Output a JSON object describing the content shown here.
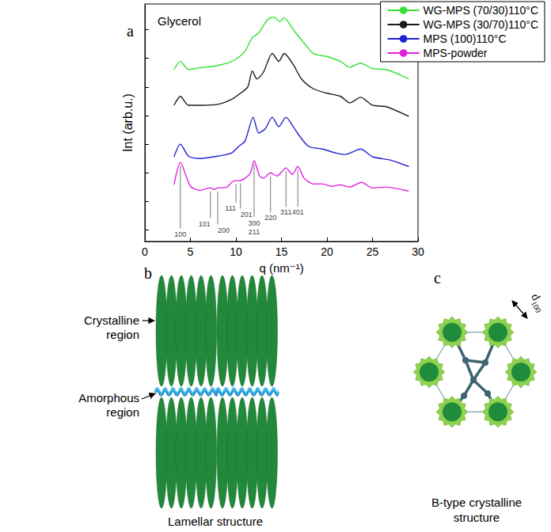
{
  "chart_data": {
    "type": "line",
    "title": "Glycerol",
    "x_label": "q (nm⁻¹)",
    "y_label": "Int (arb.u.)",
    "xlim": [
      0,
      30
    ],
    "xticks": [
      0,
      5,
      10,
      15,
      20,
      25,
      30
    ],
    "ylim": [
      -0.4,
      7.9
    ],
    "yticks": [
      0,
      1,
      2,
      3,
      4,
      5,
      6,
      7
    ],
    "tick_labels": "x",
    "grid": false,
    "legend": "upper right",
    "series": [
      {
        "name": "WG-MPS (70/30)110°C",
        "color": "#33e033",
        "x": [
          3.2,
          3.9,
          4.8,
          6,
          7.5,
          9,
          10,
          11,
          11.8,
          12.5,
          13.5,
          14.2,
          14.8,
          15.3,
          16.3,
          17.5,
          18.5,
          20,
          21.5,
          22.5,
          23.7,
          25,
          26.5,
          29
        ],
        "values": [
          5.61,
          5.89,
          5.61,
          5.67,
          5.72,
          5.83,
          5.97,
          6.25,
          6.72,
          6.89,
          7.36,
          7.44,
          7.28,
          7.42,
          7.0,
          6.53,
          6.17,
          6.06,
          5.89,
          5.69,
          5.83,
          5.64,
          5.61,
          5.28
        ]
      },
      {
        "name": "WG-MPS (30/70)110°C",
        "color": "#1a1a1a",
        "x": [
          3.2,
          3.9,
          4.8,
          6,
          8,
          9.5,
          10.5,
          11.3,
          11.8,
          12.3,
          13,
          14,
          14.7,
          15.3,
          16.3,
          17.2,
          18.5,
          20,
          21.5,
          22.5,
          23.7,
          25,
          26.5,
          29
        ],
        "values": [
          4.36,
          4.67,
          4.36,
          4.36,
          4.39,
          4.56,
          4.78,
          5.0,
          5.56,
          5.28,
          5.5,
          6.17,
          5.89,
          6.17,
          5.78,
          5.28,
          4.94,
          4.78,
          4.67,
          4.44,
          4.64,
          4.36,
          4.31,
          3.97
        ]
      },
      {
        "name": "MPS (100)110°C",
        "color": "#2020d0",
        "x": [
          3.2,
          3.9,
          4.8,
          6,
          8,
          9.5,
          10.3,
          11,
          11.9,
          12.5,
          13.2,
          14,
          14.7,
          15.5,
          16.3,
          17,
          18,
          19.5,
          21,
          22,
          23.7,
          25,
          27,
          29
        ],
        "values": [
          2.56,
          3.0,
          2.58,
          2.5,
          2.58,
          2.69,
          2.92,
          3.11,
          3.94,
          3.39,
          3.53,
          3.94,
          3.61,
          3.94,
          3.61,
          3.28,
          2.92,
          2.83,
          2.69,
          2.64,
          2.83,
          2.56,
          2.44,
          2.22
        ]
      },
      {
        "name": "MPS-powder",
        "color": "#e020e0",
        "x": [
          3.2,
          3.9,
          5,
          6,
          7.2,
          7.6,
          8,
          9,
          9.8,
          10.3,
          11,
          11.6,
          12,
          12.6,
          13,
          13.8,
          14.5,
          15.5,
          16.2,
          16.8,
          17.5,
          18.5,
          19.5,
          20.5,
          21.5,
          22.5,
          23.8,
          25,
          26.5,
          29
        ],
        "values": [
          1.58,
          2.36,
          1.53,
          1.39,
          1.47,
          1.42,
          1.47,
          1.5,
          1.72,
          1.72,
          1.81,
          2.0,
          2.42,
          1.89,
          1.81,
          2.0,
          1.89,
          2.17,
          1.94,
          2.22,
          1.81,
          1.61,
          1.61,
          1.53,
          1.58,
          1.5,
          1.67,
          1.47,
          1.5,
          1.36
        ]
      }
    ],
    "annotations": [
      {
        "text": "100",
        "x": 3.9,
        "y": -0.14
      },
      {
        "text": "101",
        "x": 7.2,
        "y": 0.22
      },
      {
        "text": "200",
        "x": 8,
        "y": 0
      },
      {
        "text": "111",
        "x": 10,
        "y": 0.75
      },
      {
        "text": "201",
        "x": 10.5,
        "y": 0.55
      },
      {
        "text": "300",
        "x": 12,
        "y": 0.25
      },
      {
        "text": "211",
        "x": 12,
        "y": -0.08
      },
      {
        "text": "220",
        "x": 13.8,
        "y": 0.42
      },
      {
        "text": "311",
        "x": 15.5,
        "y": 0.61
      },
      {
        "text": "401",
        "x": 16.8,
        "y": 0.61
      }
    ]
  },
  "panel_a": {
    "label": "a"
  },
  "panel_b": {
    "label": "b",
    "crystalline": "Crystalline region",
    "amorphous": "Amorphous region",
    "caption": "Lamellar structure"
  },
  "panel_c": {
    "label": "c",
    "spacing": "d100",
    "caption": "B-type crystalline structure"
  }
}
